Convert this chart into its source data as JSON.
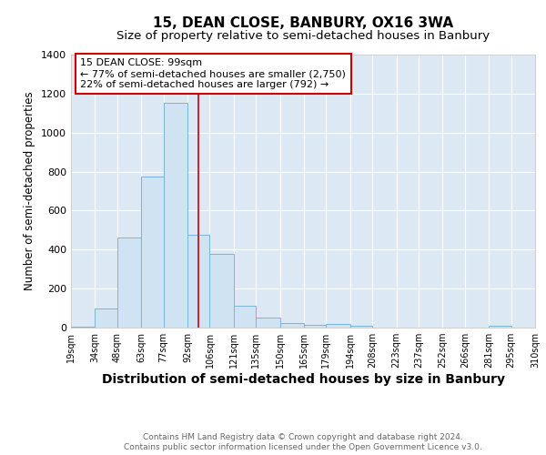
{
  "title": "15, DEAN CLOSE, BANBURY, OX16 3WA",
  "subtitle": "Size of property relative to semi-detached houses in Banbury",
  "xlabel": "Distribution of semi-detached houses by size in Banbury",
  "ylabel": "Number of semi-detached properties",
  "bin_labels": [
    "19sqm",
    "34sqm",
    "48sqm",
    "63sqm",
    "77sqm",
    "92sqm",
    "106sqm",
    "121sqm",
    "135sqm",
    "150sqm",
    "165sqm",
    "179sqm",
    "194sqm",
    "208sqm",
    "223sqm",
    "237sqm",
    "252sqm",
    "266sqm",
    "281sqm",
    "295sqm",
    "310sqm"
  ],
  "bin_edges": [
    19,
    34,
    48,
    63,
    77,
    92,
    106,
    121,
    135,
    150,
    165,
    179,
    194,
    208,
    223,
    237,
    252,
    266,
    281,
    295,
    310
  ],
  "bar_heights": [
    5,
    100,
    460,
    775,
    1155,
    475,
    380,
    110,
    50,
    25,
    15,
    20,
    8,
    0,
    0,
    0,
    0,
    0,
    10,
    0
  ],
  "bar_color": "#cfe3f3",
  "bar_edge_color": "#7ab4d8",
  "property_size": 99,
  "vline_color": "#cc0000",
  "annotation_text_line1": "15 DEAN CLOSE: 99sqm",
  "annotation_text_line2": "← 77% of semi-detached houses are smaller (2,750)",
  "annotation_text_line3": "22% of semi-detached houses are larger (792) →",
  "annotation_box_facecolor": "#ffffff",
  "annotation_box_edgecolor": "#cc0000",
  "ylim": [
    0,
    1400
  ],
  "footer1": "Contains HM Land Registry data © Crown copyright and database right 2024.",
  "footer2": "Contains public sector information licensed under the Open Government Licence v3.0.",
  "fig_facecolor": "#ffffff",
  "axes_facecolor": "#dde8f5",
  "grid_color": "#ffffff",
  "title_fontsize": 11,
  "subtitle_fontsize": 9.5,
  "xlabel_fontsize": 10,
  "ylabel_fontsize": 8.5,
  "tick_fontsize": 7,
  "annotation_fontsize": 8,
  "footer_fontsize": 6.5
}
